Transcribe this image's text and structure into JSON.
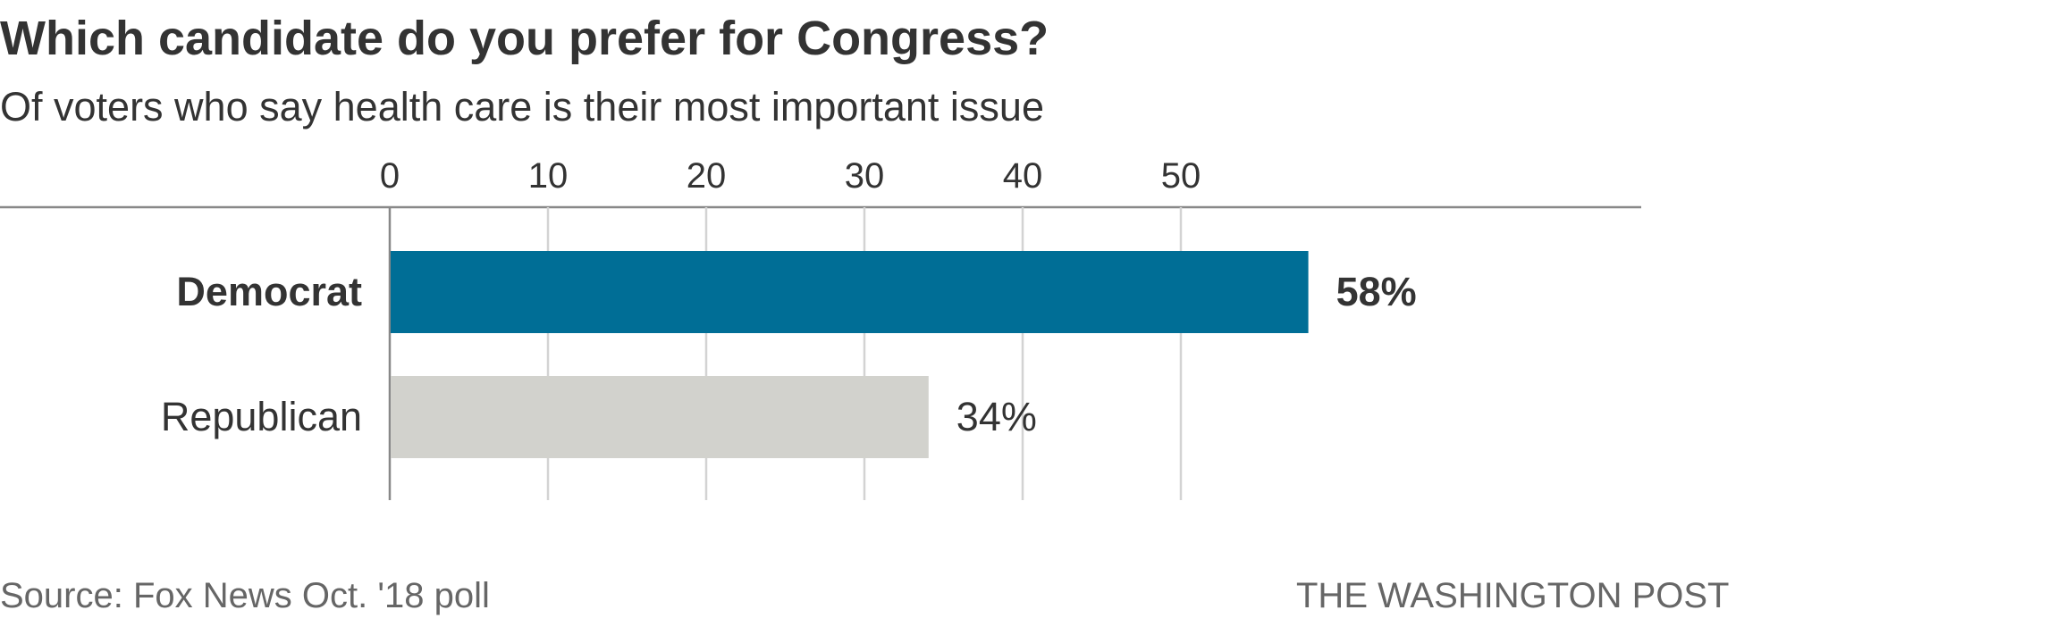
{
  "title": "Which candidate do you prefer for Congress?",
  "subtitle": "Of voters who say health care is their most important issue",
  "source": "Source: Fox News Oct. '18 poll",
  "credit": "THE WASHINGTON POST",
  "colors": {
    "highlight": "#006e96",
    "muted": "#d2d2cd",
    "gridline": "#d3d3d3",
    "axis": "#888888",
    "text": "#333333"
  },
  "chart_data": {
    "type": "bar",
    "orientation": "horizontal",
    "categories": [
      "Democrat",
      "Republican"
    ],
    "values": [
      58,
      34
    ],
    "value_labels": [
      "58%",
      "34%"
    ],
    "highlighted": [
      true,
      false
    ],
    "xlim": [
      0,
      58
    ],
    "xticks": [
      0,
      10,
      20,
      30,
      40,
      50
    ],
    "xtick_labels": [
      "0",
      "10",
      "20",
      "30",
      "40",
      "50"
    ],
    "grid": true,
    "axis_position": "top"
  }
}
